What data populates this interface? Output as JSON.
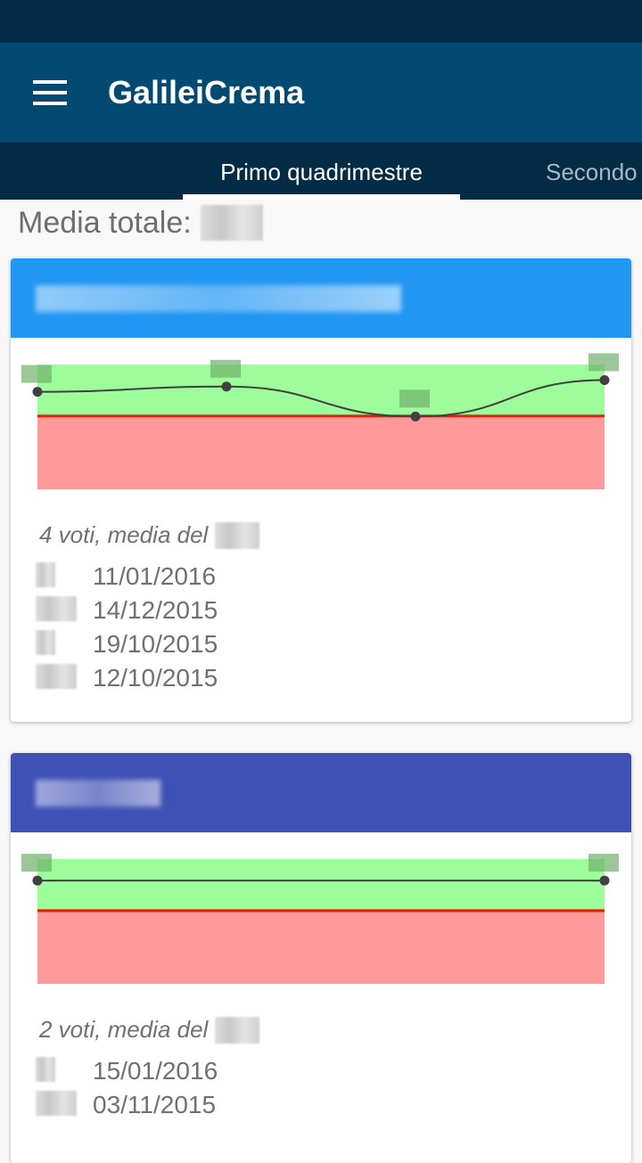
{
  "app": {
    "title": "GalileiCrema",
    "menu_icon": "hamburger-menu-icon"
  },
  "tabs": [
    {
      "label": "Primo quadrimestre",
      "selected": true
    },
    {
      "label": "Secondo quadrimestre",
      "selected": false
    }
  ],
  "media_totale": {
    "label": "Media totale:"
  },
  "colors": {
    "status_bar": "#022b45",
    "app_bar": "#034a73",
    "pass_zone": "#9dfd9b",
    "fail_zone": "#fe9a9a",
    "threshold_line": "#e02000",
    "line": "#404040"
  },
  "subjects": [
    {
      "header_color": "#2196f3",
      "summary": "4 voti, media del",
      "grades": [
        {
          "date": "11/01/2016"
        },
        {
          "date": "14/12/2015"
        },
        {
          "date": "19/10/2015"
        },
        {
          "date": "12/10/2015"
        }
      ],
      "chart_data": {
        "type": "line",
        "threshold": 6,
        "ylim": [
          0.4,
          10
        ],
        "values": [
          7.9,
          8.3,
          6.0,
          8.8
        ]
      }
    },
    {
      "header_color": "#3f51b5",
      "summary": "2 voti, media del",
      "grades": [
        {
          "date": "15/01/2016"
        },
        {
          "date": "03/11/2015"
        }
      ],
      "chart_data": {
        "type": "line",
        "threshold": 6,
        "ylim": [
          0.4,
          10
        ],
        "values": [
          8.35,
          8.35
        ]
      }
    }
  ]
}
